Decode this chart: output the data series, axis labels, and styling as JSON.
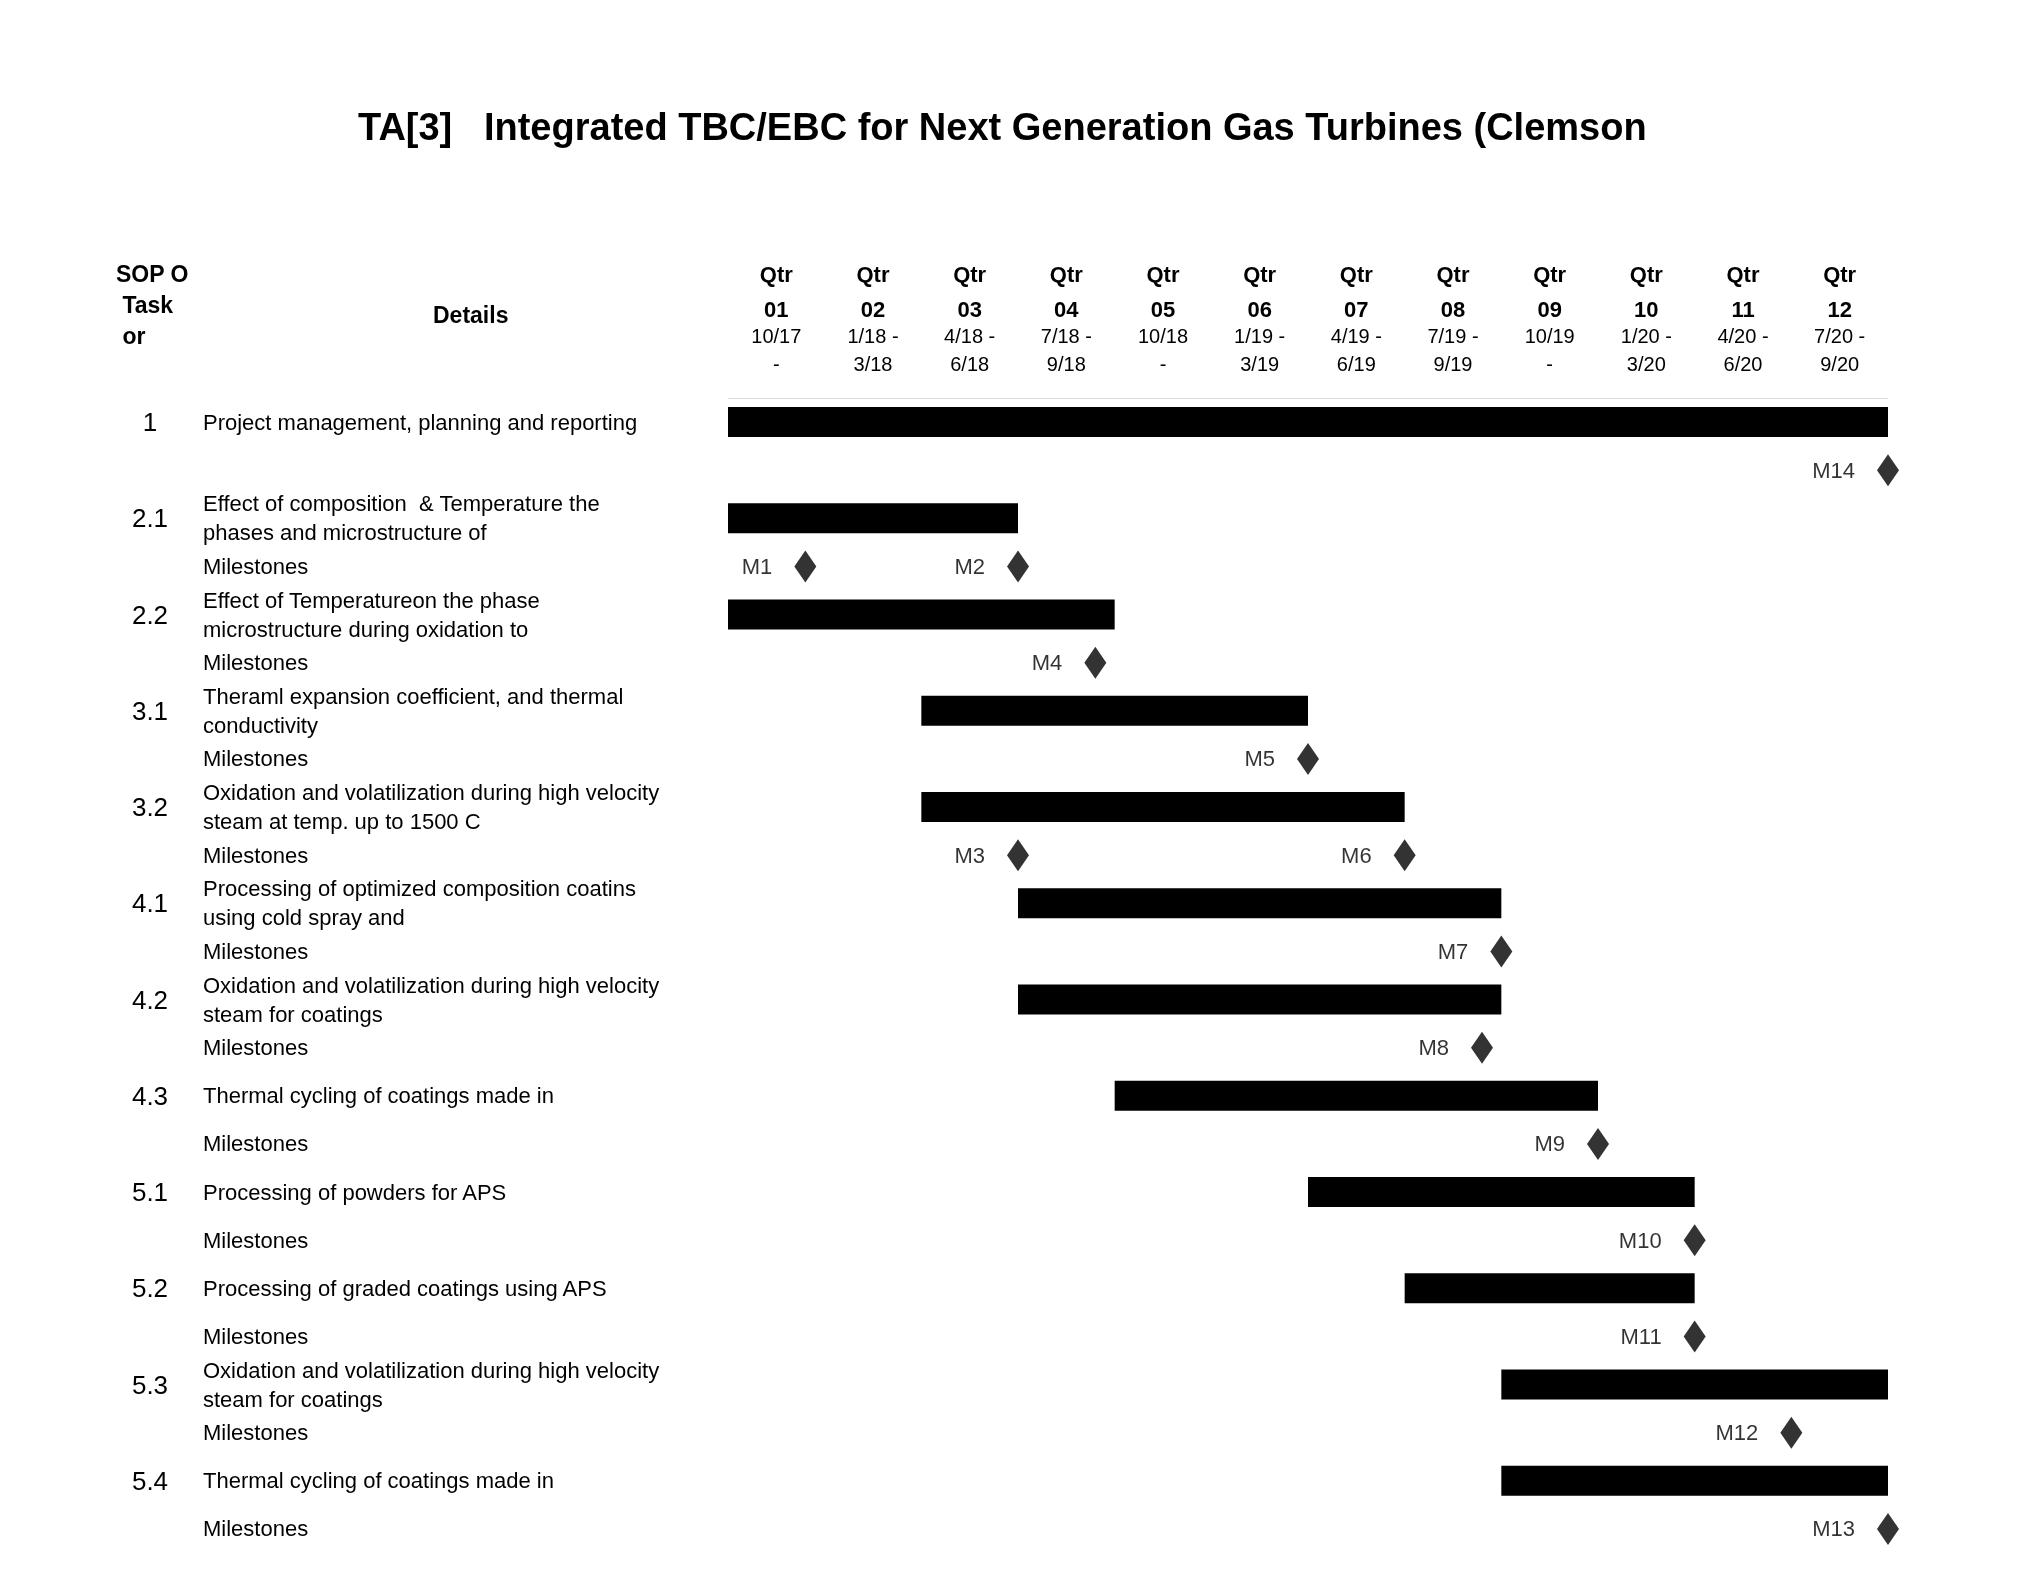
{
  "chart_data": {
    "type": "bar",
    "orientation": "horizontal",
    "title": "TA[3]   Integrated TBC/EBC for Next Generation Gas Turbines (Clemson",
    "ylabel": "Details",
    "y2label": "SOP O Task or",
    "annotations": [
      "1",
      "2.1",
      "2.2",
      "3.1",
      "3.2",
      "4.1",
      "4.2",
      "4.3",
      "5.1",
      "5.2",
      "5.3",
      "5.4",
      "Qtr",
      "10/17\n-",
      "Qtr",
      "1/18 -\n3/18",
      "Qtr",
      "4/18 -\n6/18",
      "Qtr",
      "7/18 -\n9/18",
      "Qtr",
      "10/18\n-",
      "Qtr",
      "1/19 -\n3/19",
      "Qtr",
      "4/19 -\n6/19",
      "Qtr",
      "7/19 -\n9/19",
      "Qtr",
      "10/19\n-",
      "Qtr",
      "1/20 -\n3/20",
      "Qtr",
      "4/20 -\n6/20",
      "Qtr",
      "7/20 -\n9/20"
    ],
    "categories": [
      "Project management, planning and reporting",
      null,
      "Effect of composition  & Temperature the phases and microstructure of",
      "Milestones",
      "Effect of Temperatureon the phase microstructure during oxidation to",
      "Milestones",
      "Theraml expansion coefficient, and thermal conductivity",
      "Milestones",
      "Oxidation and volatilization during high velocity steam at temp. up to 1500 C",
      "Milestones",
      "Processing of optimized composition coatins using cold spray and",
      "Milestones",
      "Oxidation and volatilization during high velocity steam for coatings",
      "Milestones",
      "Thermal cycling of coatings made in",
      "Milestones",
      "Processing of powders for APS",
      "Milestones",
      "Processing of graded coatings using APS",
      "Milestones",
      "Oxidation and volatilization during high velocity steam for coatings",
      "Milestones",
      "Thermal cycling of coatings made in",
      "Milestones"
    ],
    "series": [
      {
        "color": "#000000",
        "base": [
          0.5,
          null,
          0.5,
          null,
          0.5,
          null,
          2.5,
          null,
          2.5,
          null,
          3.5,
          null,
          3.5,
          null,
          4.5,
          null,
          6.5,
          null,
          7.5,
          null,
          8.5,
          null,
          8.5,
          null
        ],
        "values": [
          12,
          null,
          3,
          null,
          4,
          null,
          4,
          null,
          5,
          null,
          5,
          null,
          5,
          null,
          5,
          null,
          4,
          null,
          3,
          null,
          4,
          null,
          4,
          null
        ]
      },
      {
        "type": "scatter",
        "color": "#000000",
        "marker": "diamond",
        "values": [
          null,
          12.5,
          null,
          1.3,
          null,
          4.3,
          null,
          6.5,
          null,
          3.5,
          null,
          8.5,
          null,
          8.3,
          null,
          9.5,
          null,
          10.5,
          null,
          10.5,
          null,
          11.5,
          null,
          12.5
        ],
        "value_labels": [
          null,
          "M14",
          null,
          "M1",
          null,
          "M4",
          null,
          "M5",
          null,
          "M3",
          null,
          "M7",
          null,
          "M8",
          null,
          "M9",
          null,
          "M10",
          null,
          "M11",
          null,
          "M12",
          null,
          "M13"
        ]
      },
      {
        "type": "scatter",
        "color": "#000000",
        "marker": "diamond",
        "values": [
          null,
          null,
          null,
          3.5,
          null,
          null,
          null,
          null,
          null,
          7.5,
          null,
          null,
          null,
          null,
          null,
          null,
          null,
          null,
          null,
          null,
          null,
          null,
          null,
          null
        ],
        "value_labels": [
          null,
          null,
          null,
          "M2",
          null,
          null,
          null,
          null,
          null,
          "M6",
          null,
          null,
          null,
          null,
          null,
          null,
          null,
          null,
          null,
          null,
          null,
          null,
          null,
          null
        ]
      }
    ],
    "xlim": [
      0.5,
      12.5
    ],
    "xticks": [
      {
        "value": 1,
        "label": "01"
      },
      {
        "value": 2,
        "label": "02"
      },
      {
        "value": 3,
        "label": "03"
      },
      {
        "value": 4,
        "label": "04"
      },
      {
        "value": 5,
        "label": "05"
      },
      {
        "value": 6,
        "label": "06"
      },
      {
        "value": 7,
        "label": "07"
      },
      {
        "value": 8,
        "label": "08"
      },
      {
        "value": 9,
        "label": "09"
      },
      {
        "value": 10,
        "label": "10"
      },
      {
        "value": 11,
        "label": "11"
      },
      {
        "value": 12,
        "label": "12"
      }
    ],
    "grid": false
  }
}
